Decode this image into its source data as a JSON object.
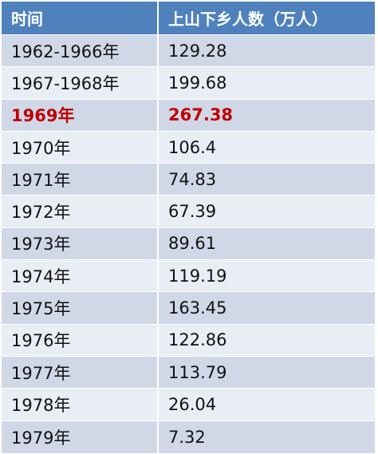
{
  "table": {
    "headers": [
      "时间",
      "上山下乡人数（万人）"
    ],
    "highlight_color": "#c00000",
    "header_color": "#4f81bd",
    "rows": [
      {
        "period": "1962-1966年",
        "count": "129.28",
        "highlight": false
      },
      {
        "period": "1967-1968年",
        "count": "199.68",
        "highlight": false
      },
      {
        "period": "1969年",
        "count": "267.38",
        "highlight": true
      },
      {
        "period": "1970年",
        "count": "106.4",
        "highlight": false
      },
      {
        "period": "1971年",
        "count": "74.83",
        "highlight": false
      },
      {
        "period": "1972年",
        "count": "67.39",
        "highlight": false
      },
      {
        "period": "1973年",
        "count": "89.61",
        "highlight": false
      },
      {
        "period": "1974年",
        "count": "119.19",
        "highlight": false
      },
      {
        "period": "1975年",
        "count": "163.45",
        "highlight": false
      },
      {
        "period": "1976年",
        "count": "122.86",
        "highlight": false
      },
      {
        "period": "1977年",
        "count": "113.79",
        "highlight": false
      },
      {
        "period": "1978年",
        "count": "26.04",
        "highlight": false
      },
      {
        "period": "1979年",
        "count": "7.32",
        "highlight": false
      }
    ]
  }
}
